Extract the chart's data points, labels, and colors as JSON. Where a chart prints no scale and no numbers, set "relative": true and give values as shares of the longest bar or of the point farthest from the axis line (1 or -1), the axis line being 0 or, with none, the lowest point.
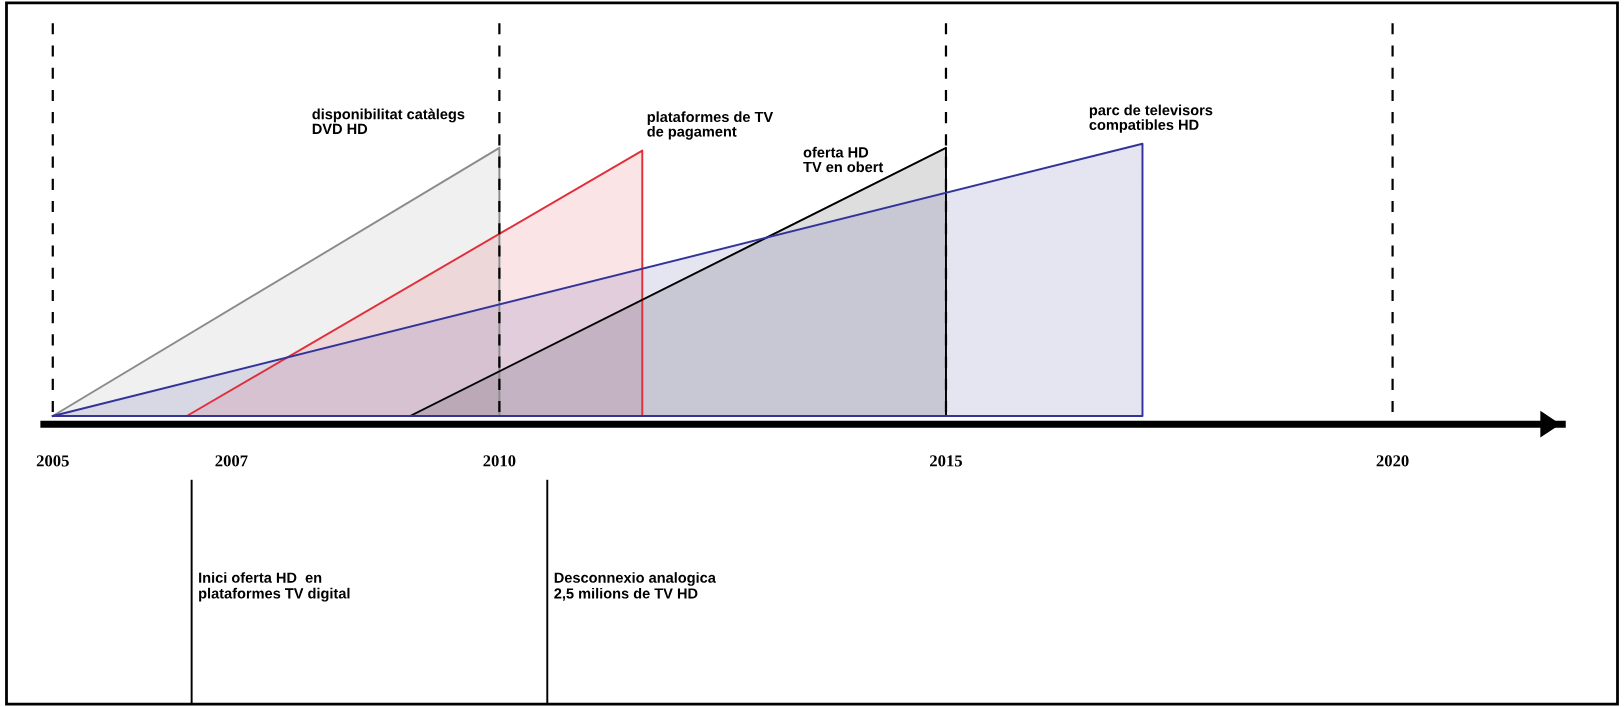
{
  "chart_data": {
    "type": "area",
    "relative": true,
    "xlim": [
      2004.9,
      2021.9
    ],
    "xticks": [
      2005,
      2007,
      2010,
      2015,
      2020
    ],
    "series": [
      {
        "name": "disponibilitat catàlegs DVD HD",
        "color": "#8c8c8c",
        "x": [
          2005,
          2010,
          2010
        ],
        "values": [
          0,
          0.985,
          0
        ]
      },
      {
        "name": "plataformes de TV de pagament",
        "color": "#e0303c",
        "x": [
          2006.5,
          2011.6,
          2011.6
        ],
        "values": [
          0,
          0.975,
          0
        ]
      },
      {
        "name": "oferta HD TV en obert",
        "color": "#000000",
        "x": [
          2009.0,
          2015,
          2015
        ],
        "values": [
          0,
          0.985,
          0
        ]
      },
      {
        "name": "parc de televisors compatibles HD",
        "color": "#333399",
        "x": [
          2005,
          2017.2,
          2017.2
        ],
        "values": [
          0,
          1,
          0
        ]
      }
    ],
    "ref_lines": [
      {
        "axis": "x",
        "value": 2005,
        "color": "#000000",
        "line_style": "dashed"
      },
      {
        "axis": "x",
        "value": 2010,
        "color": "#000000",
        "line_style": "dashed"
      },
      {
        "axis": "x",
        "value": 2015,
        "color": "#000000",
        "line_style": "dashed"
      },
      {
        "axis": "x",
        "value": 2020,
        "color": "#000000",
        "line_style": "dashed"
      }
    ],
    "annotations": [
      "Inici oferta HD  en\nplataformes TV digital",
      "Desconnexio analogica\n2,5 milions de TV HD"
    ],
    "grid": false,
    "legend": false
  }
}
